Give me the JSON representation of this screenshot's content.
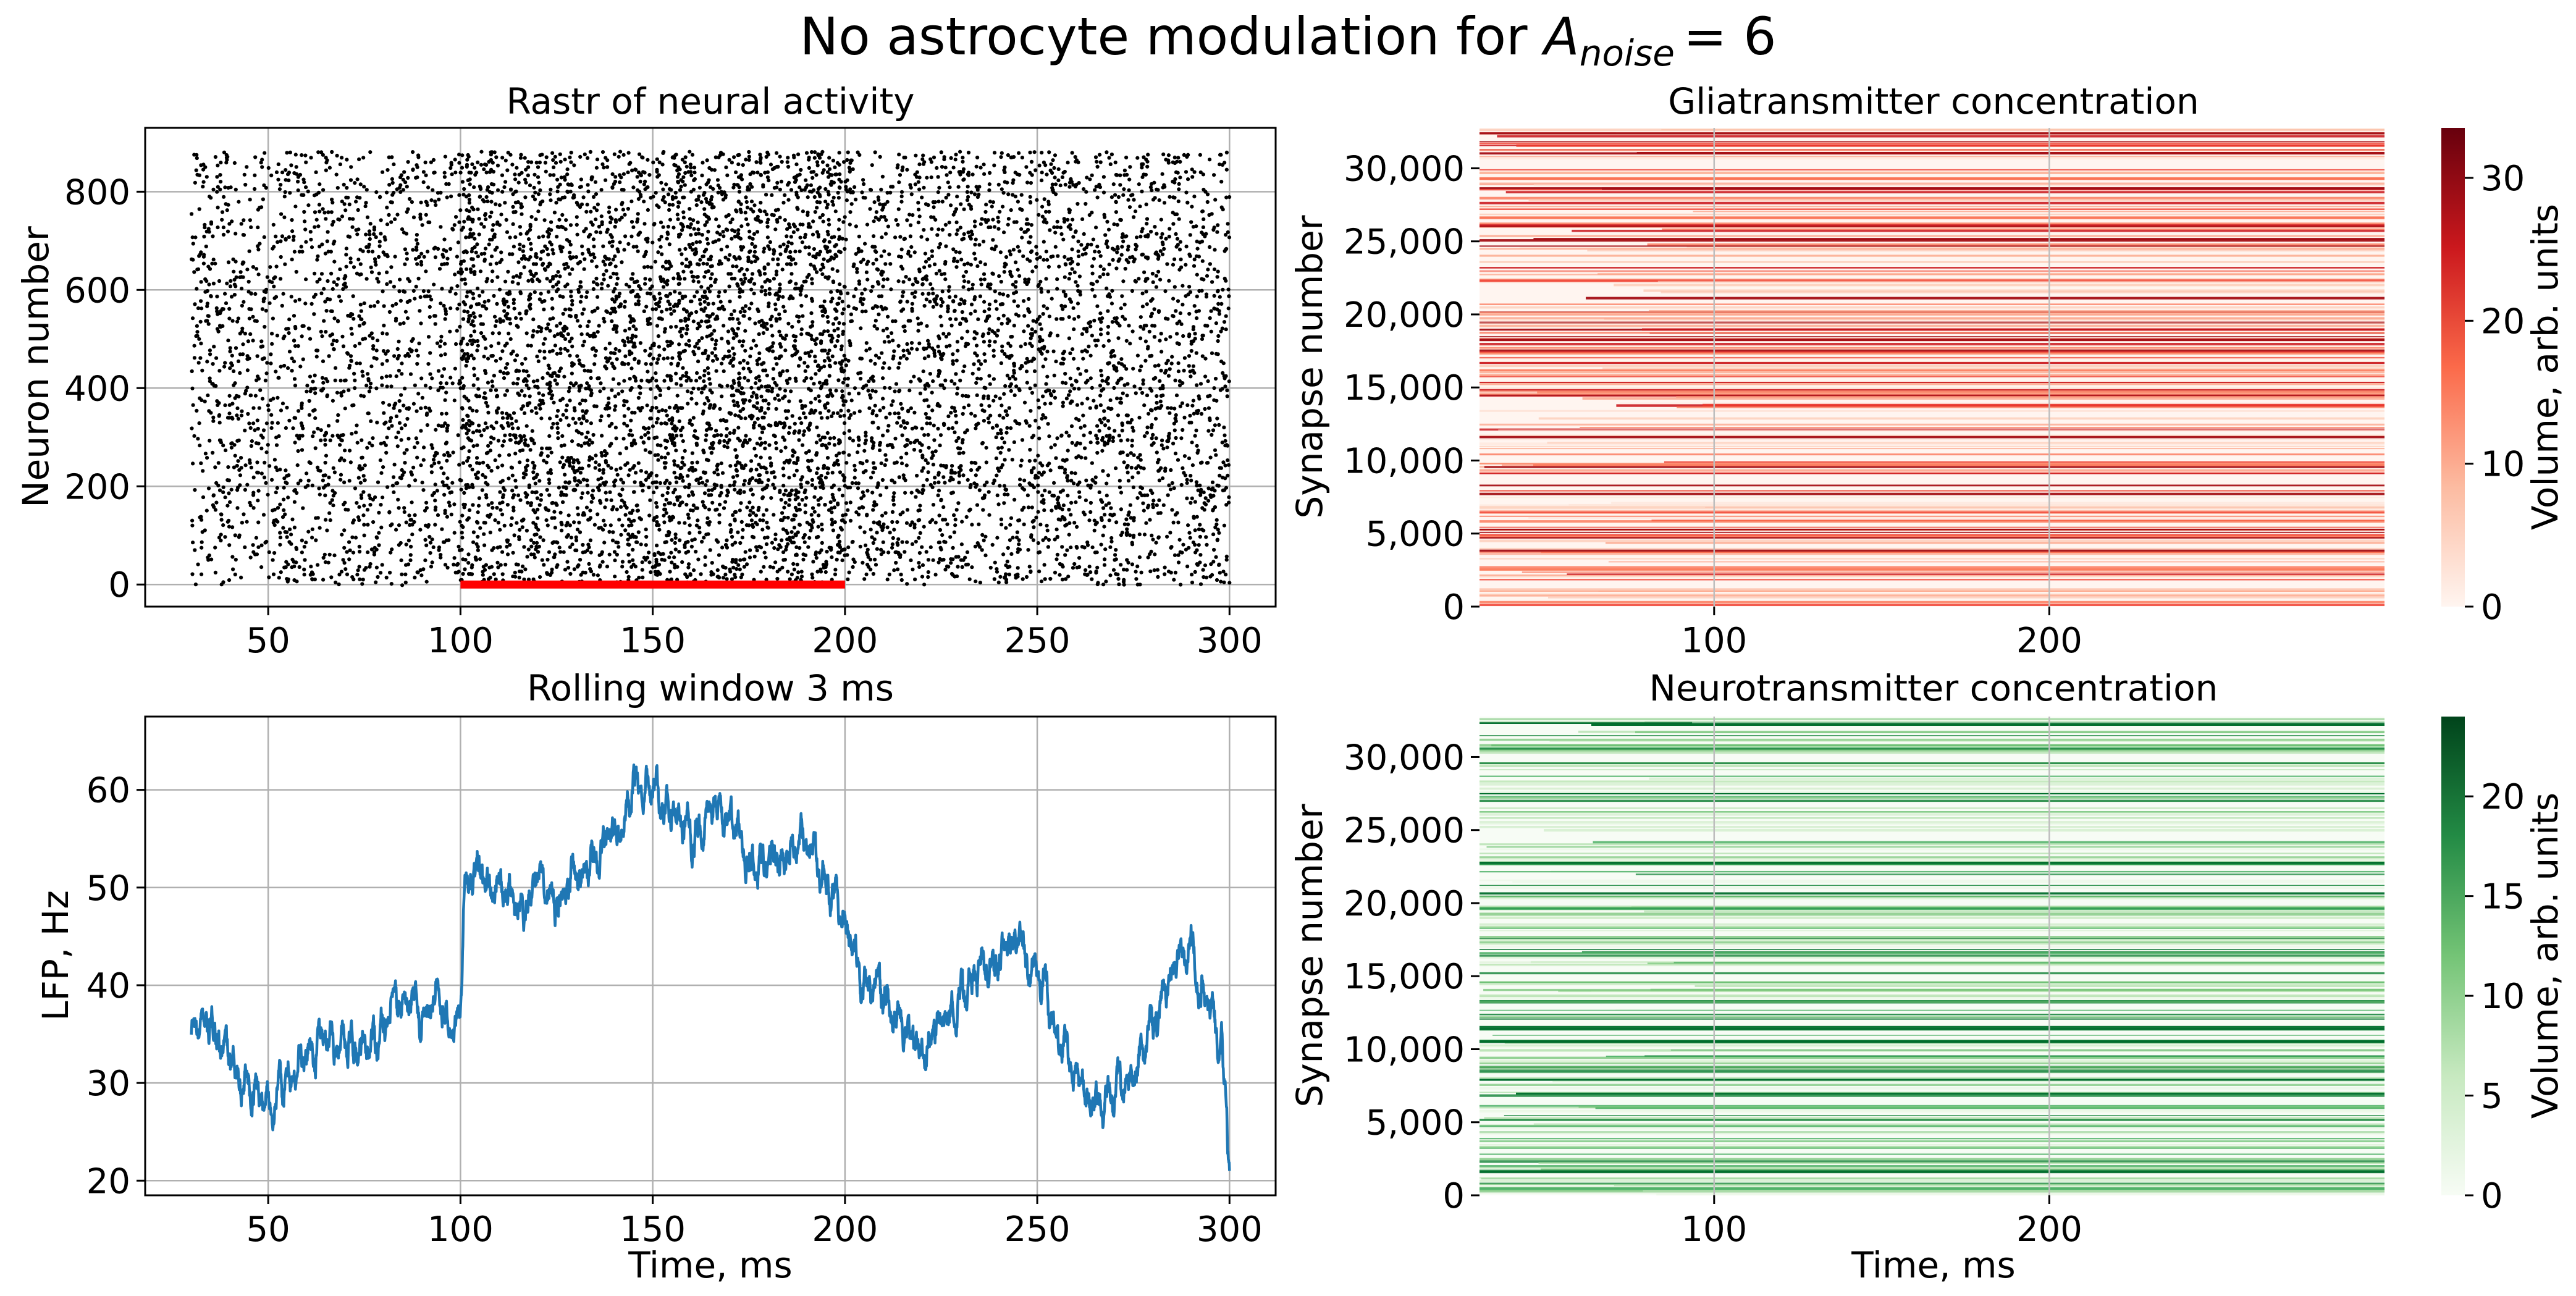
{
  "figure": {
    "title_main": "No astrocyte modulation for ",
    "title_symbol": "A",
    "title_subscript": "noise",
    "title_value": "= 6"
  },
  "chart_data": [
    {
      "id": "raster",
      "type": "scatter",
      "title": "Rastr of neural activity",
      "xlabel": "",
      "ylabel": "Neuron number",
      "xlim": [
        18,
        312
      ],
      "ylim": [
        -45,
        930
      ],
      "xticks": [
        50,
        100,
        150,
        200,
        250,
        300
      ],
      "yticks": [
        0,
        200,
        400,
        600,
        800
      ],
      "grid": true,
      "series": [
        {
          "name": "spikes",
          "color": "#000000",
          "x_range": [
            30,
            300
          ],
          "neurons": [
            0,
            880
          ],
          "rate_profile": [
            {
              "t0": 30,
              "t1": 100,
              "rate": 0.33
            },
            {
              "t0": 100,
              "t1": 150,
              "rate": 0.52
            },
            {
              "t0": 150,
              "t1": 200,
              "rate": 0.6
            },
            {
              "t0": 200,
              "t1": 300,
              "rate": 0.4
            }
          ]
        },
        {
          "name": "stimulus",
          "color": "#ff0000",
          "x": [
            100,
            200
          ],
          "y": [
            0,
            0
          ]
        }
      ]
    },
    {
      "id": "glia",
      "type": "heatmap",
      "title": "Gliatransmitter concentration",
      "xlabel": "",
      "ylabel": "Synapse number",
      "xlim": [
        30,
        300
      ],
      "ylim": [
        0,
        32768
      ],
      "xticks": [
        100,
        200
      ],
      "yticks": [
        0,
        5000,
        10000,
        15000,
        20000,
        25000,
        30000
      ],
      "ytick_labels": [
        "0",
        "5,000",
        "10,000",
        "15,000",
        "20,000",
        "25,000",
        "30,000"
      ],
      "colormap": "Reds",
      "cbar_label": "Volume, arb. units",
      "cbar_range": [
        0,
        33.5
      ],
      "cbar_ticks": [
        0,
        10,
        20,
        30
      ],
      "grid": true
    },
    {
      "id": "lfp",
      "type": "line",
      "title": "Rolling window 3 ms",
      "xlabel": "Time, ms",
      "ylabel": "LFP, Hz",
      "xlim": [
        18,
        312
      ],
      "ylim": [
        18.5,
        67.5
      ],
      "xticks": [
        50,
        100,
        150,
        200,
        250,
        300
      ],
      "yticks": [
        20,
        30,
        40,
        50,
        60
      ],
      "grid": true,
      "series": [
        {
          "name": "LFP",
          "color": "#1f77b4",
          "keypoints": [
            [
              30,
              35
            ],
            [
              35,
              36
            ],
            [
              40,
              32
            ],
            [
              45,
              30
            ],
            [
              50,
              28
            ],
            [
              55,
              30
            ],
            [
              60,
              33
            ],
            [
              65,
              35
            ],
            [
              70,
              34
            ],
            [
              75,
              33
            ],
            [
              80,
              36
            ],
            [
              85,
              38
            ],
            [
              90,
              37
            ],
            [
              95,
              39
            ],
            [
              99,
              35
            ],
            [
              100,
              37
            ],
            [
              101,
              50
            ],
            [
              105,
              52
            ],
            [
              110,
              50
            ],
            [
              115,
              48
            ],
            [
              120,
              50
            ],
            [
              125,
              48
            ],
            [
              130,
              52
            ],
            [
              135,
              52
            ],
            [
              140,
              55
            ],
            [
              145,
              60
            ],
            [
              150,
              61
            ],
            [
              155,
              58
            ],
            [
              160,
              55
            ],
            [
              165,
              58
            ],
            [
              170,
              57
            ],
            [
              175,
              53
            ],
            [
              180,
              52
            ],
            [
              185,
              53
            ],
            [
              190,
              55
            ],
            [
              195,
              51
            ],
            [
              200,
              46
            ],
            [
              205,
              40
            ],
            [
              210,
              38
            ],
            [
              215,
              36
            ],
            [
              220,
              33
            ],
            [
              225,
              36
            ],
            [
              230,
              39
            ],
            [
              235,
              41
            ],
            [
              240,
              43
            ],
            [
              245,
              44
            ],
            [
              250,
              41
            ],
            [
              255,
              35
            ],
            [
              260,
              31
            ],
            [
              265,
              28
            ],
            [
              270,
              29
            ],
            [
              275,
              31
            ],
            [
              280,
              35
            ],
            [
              285,
              41
            ],
            [
              290,
              44
            ],
            [
              295,
              37
            ],
            [
              298,
              33
            ],
            [
              300,
              21
            ]
          ]
        }
      ]
    },
    {
      "id": "neuro",
      "type": "heatmap",
      "title": "Neurotransmitter concentration",
      "xlabel": "Time, ms",
      "ylabel": "Synapse number",
      "xlim": [
        30,
        300
      ],
      "ylim": [
        0,
        32768
      ],
      "xticks": [
        100,
        200
      ],
      "yticks": [
        0,
        5000,
        10000,
        15000,
        20000,
        25000,
        30000
      ],
      "ytick_labels": [
        "0",
        "5,000",
        "10,000",
        "15,000",
        "20,000",
        "25,000",
        "30,000"
      ],
      "colormap": "Greens",
      "cbar_label": "Volume, arb. units",
      "cbar_range": [
        0,
        24
      ],
      "cbar_ticks": [
        0,
        5,
        10,
        15,
        20
      ],
      "grid": true
    }
  ]
}
